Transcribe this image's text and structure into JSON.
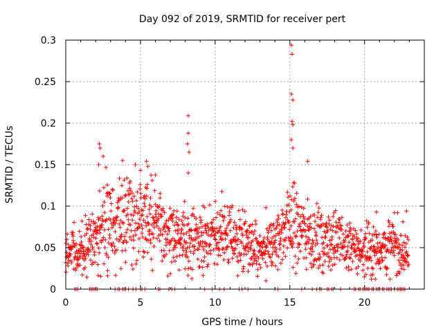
{
  "chart_data": {
    "type": "scatter",
    "title": "Day 092 of 2019, SRMTID for receiver pert",
    "xlabel": "GPS time / hours",
    "ylabel": "SRMTID / TECUs",
    "xlim": [
      0,
      24
    ],
    "ylim": [
      0,
      0.3
    ],
    "x_ticks": [
      0,
      5,
      10,
      15,
      20
    ],
    "x_tick_labels": [
      "0",
      "5",
      "10",
      "15",
      "20"
    ],
    "y_ticks": [
      0,
      0.05,
      0.1,
      0.15,
      0.2,
      0.25,
      0.3
    ],
    "y_tick_labels": [
      "0",
      "0.05",
      "0.1",
      "0.15",
      "0.2",
      "0.25",
      "0.3"
    ],
    "grid": true,
    "marker": "+",
    "series": [
      {
        "name": "SRMTID",
        "color": "#ff0000",
        "x_start": 0.0,
        "x_end": 22.95,
        "profile": [
          [
            0.0,
            0.04
          ],
          [
            1.0,
            0.045
          ],
          [
            2.0,
            0.06
          ],
          [
            2.5,
            0.085
          ],
          [
            3.5,
            0.08
          ],
          [
            4.5,
            0.078
          ],
          [
            5.5,
            0.085
          ],
          [
            6.5,
            0.072
          ],
          [
            7.5,
            0.062
          ],
          [
            8.5,
            0.058
          ],
          [
            10.0,
            0.063
          ],
          [
            11.0,
            0.066
          ],
          [
            12.0,
            0.055
          ],
          [
            13.0,
            0.042
          ],
          [
            14.0,
            0.055
          ],
          [
            15.0,
            0.082
          ],
          [
            16.0,
            0.068
          ],
          [
            17.0,
            0.058
          ],
          [
            18.0,
            0.06
          ],
          [
            19.0,
            0.05
          ],
          [
            20.0,
            0.045
          ],
          [
            21.0,
            0.05
          ],
          [
            22.0,
            0.052
          ],
          [
            23.0,
            0.04
          ]
        ],
        "notable_points": [
          {
            "x": 2.25,
            "y": 0.175
          },
          {
            "x": 2.3,
            "y": 0.17
          },
          {
            "x": 2.2,
            "y": 0.15
          },
          {
            "x": 2.5,
            "y": 0.16
          },
          {
            "x": 3.8,
            "y": 0.155
          },
          {
            "x": 5.4,
            "y": 0.154
          },
          {
            "x": 5.5,
            "y": 0.148
          },
          {
            "x": 8.2,
            "y": 0.209
          },
          {
            "x": 8.2,
            "y": 0.188
          },
          {
            "x": 8.15,
            "y": 0.175
          },
          {
            "x": 8.25,
            "y": 0.165
          },
          {
            "x": 8.2,
            "y": 0.14
          },
          {
            "x": 15.1,
            "y": 0.294
          },
          {
            "x": 15.15,
            "y": 0.283
          },
          {
            "x": 15.1,
            "y": 0.235
          },
          {
            "x": 15.2,
            "y": 0.228
          },
          {
            "x": 15.15,
            "y": 0.202
          },
          {
            "x": 15.2,
            "y": 0.198
          },
          {
            "x": 15.1,
            "y": 0.18
          },
          {
            "x": 15.2,
            "y": 0.17
          },
          {
            "x": 16.2,
            "y": 0.154
          },
          {
            "x": 20.8,
            "y": 0.093
          },
          {
            "x": 22.0,
            "y": 0.092
          },
          {
            "x": 2.8,
            "y": 0.016
          },
          {
            "x": 13.4,
            "y": 0.01
          }
        ],
        "zero_value_hours": [
          0.6,
          0.7,
          0.8,
          1.6,
          1.7,
          1.8,
          1.9,
          2.0,
          2.1,
          3.3,
          3.5,
          3.6,
          3.8,
          3.9,
          4.0,
          4.2,
          4.5,
          4.7,
          5.0,
          5.1,
          5.3,
          6.2,
          6.3,
          6.9,
          7.1,
          7.3,
          9.3,
          9.8,
          10.3,
          10.6,
          11.6,
          11.8,
          12.2,
          14.0,
          14.2,
          15.8,
          16.5,
          16.8,
          17.0,
          17.1,
          17.5,
          17.6,
          17.8,
          17.9,
          18.4,
          19.3,
          19.4,
          19.6,
          19.7,
          19.9,
          20.0,
          20.1,
          20.2,
          20.3,
          20.5,
          20.6,
          20.8,
          20.9,
          21.0,
          21.2,
          21.3,
          21.5,
          21.6,
          21.7,
          21.8,
          22.0,
          22.2,
          22.3,
          22.4,
          22.5,
          22.6,
          22.7
        ]
      }
    ]
  }
}
